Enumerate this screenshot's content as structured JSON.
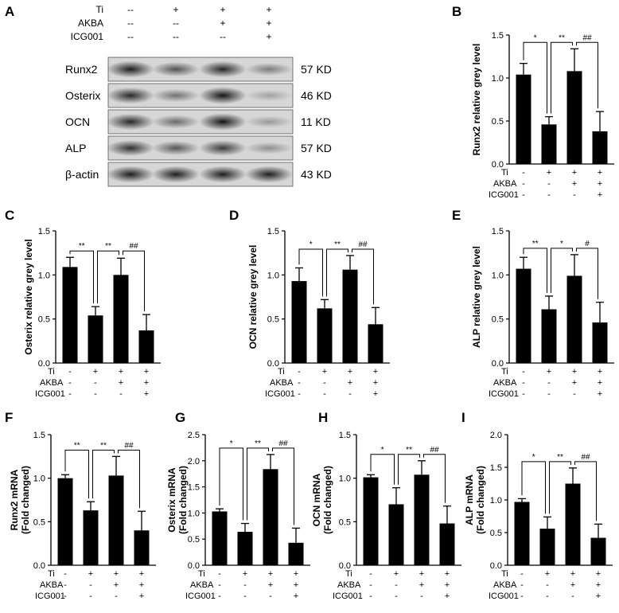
{
  "blot": {
    "letter": "A",
    "treatment_rows": [
      {
        "label": "Ti",
        "signs": [
          "--",
          "+",
          "+",
          "+"
        ]
      },
      {
        "label": "AKBA",
        "signs": [
          "--",
          "--",
          "+",
          "+"
        ]
      },
      {
        "label": "ICG001",
        "signs": [
          "--",
          "--",
          "--",
          "+"
        ]
      }
    ],
    "proteins": [
      {
        "name": "Runx2",
        "size": "57 KD",
        "intensities": [
          0.9,
          0.62,
          0.85,
          0.4
        ]
      },
      {
        "name": "Osterix",
        "size": "46 KD",
        "intensities": [
          0.85,
          0.45,
          0.95,
          0.2
        ]
      },
      {
        "name": "OCN",
        "size": "11 KD",
        "intensities": [
          0.85,
          0.5,
          0.95,
          0.25
        ]
      },
      {
        "name": "ALP",
        "size": "57 KD",
        "intensities": [
          0.8,
          0.6,
          0.75,
          0.3
        ]
      },
      {
        "name": "β-actin",
        "size": "43 KD",
        "intensities": [
          0.9,
          0.9,
          0.9,
          0.9
        ]
      }
    ]
  },
  "treatment_labels": [
    "Ti",
    "AKBA",
    "ICG001"
  ],
  "treatment_signs": [
    [
      "-",
      "+",
      "+",
      "+"
    ],
    [
      "-",
      "-",
      "+",
      "+"
    ],
    [
      "-",
      "-",
      "-",
      "+"
    ]
  ],
  "chart_data": [
    {
      "type": "bar",
      "letter": "B",
      "ylabel": "Runx2 relative grey level",
      "values": [
        1.04,
        0.46,
        1.08,
        0.38
      ],
      "errors": [
        0.13,
        0.09,
        0.26,
        0.23
      ],
      "ylim": [
        0,
        1.5
      ],
      "yticks": [
        "0.0",
        "0.5",
        "1.0",
        "1.5"
      ],
      "sig": [
        "*",
        "**",
        "##"
      ]
    },
    {
      "type": "bar",
      "letter": "C",
      "ylabel": "Osterix relative grey level",
      "values": [
        1.09,
        0.54,
        1.0,
        0.37
      ],
      "errors": [
        0.11,
        0.1,
        0.19,
        0.18
      ],
      "ylim": [
        0,
        1.5
      ],
      "yticks": [
        "0.0",
        "0.5",
        "1.0",
        "1.5"
      ],
      "sig": [
        "**",
        "**",
        "##"
      ]
    },
    {
      "type": "bar",
      "letter": "D",
      "ylabel": "OCN relative grey level",
      "values": [
        0.93,
        0.62,
        1.06,
        0.44
      ],
      "errors": [
        0.15,
        0.1,
        0.16,
        0.19
      ],
      "ylim": [
        0,
        1.5
      ],
      "yticks": [
        "0.0",
        "0.5",
        "1.0",
        "1.5"
      ],
      "sig": [
        "*",
        "**",
        "##"
      ]
    },
    {
      "type": "bar",
      "letter": "E",
      "ylabel": "ALP relative grey level",
      "values": [
        1.07,
        0.61,
        0.99,
        0.46
      ],
      "errors": [
        0.13,
        0.15,
        0.24,
        0.23
      ],
      "ylim": [
        0,
        1.5
      ],
      "yticks": [
        "0.0",
        "0.5",
        "1.0",
        "1.5"
      ],
      "sig": [
        "**",
        "*",
        "#"
      ]
    },
    {
      "type": "bar",
      "letter": "F",
      "ylabel": "Runx2 mRNA",
      "ylabel2": "(Fold changed)",
      "values": [
        1.0,
        0.63,
        1.03,
        0.4
      ],
      "errors": [
        0.04,
        0.1,
        0.22,
        0.22
      ],
      "ylim": [
        0,
        1.5
      ],
      "yticks": [
        "0.0",
        "0.5",
        "1.0",
        "1.5"
      ],
      "sig": [
        "**",
        "**",
        "##"
      ]
    },
    {
      "type": "bar",
      "letter": "G",
      "ylabel": "Osterix mRNA",
      "ylabel2": "(Fold changed)",
      "values": [
        1.03,
        0.64,
        1.84,
        0.43
      ],
      "errors": [
        0.05,
        0.16,
        0.28,
        0.28
      ],
      "ylim": [
        0,
        2.5
      ],
      "yticks": [
        "0.0",
        "0.5",
        "1.0",
        "1.5",
        "2.0",
        "2.5"
      ],
      "sig": [
        "*",
        "**",
        "##"
      ]
    },
    {
      "type": "bar",
      "letter": "H",
      "ylabel": "OCN mRNA",
      "ylabel2": "(Fold changed)",
      "values": [
        1.01,
        0.7,
        1.04,
        0.48
      ],
      "errors": [
        0.03,
        0.19,
        0.16,
        0.2
      ],
      "ylim": [
        0,
        1.5
      ],
      "yticks": [
        "0.0",
        "0.5",
        "1.0",
        "1.5"
      ],
      "sig": [
        "*",
        "**",
        "##"
      ]
    },
    {
      "type": "bar",
      "letter": "I",
      "ylabel": "ALP mRNA",
      "ylabel2": "(Fold changed)",
      "values": [
        0.97,
        0.56,
        1.25,
        0.42
      ],
      "errors": [
        0.05,
        0.18,
        0.24,
        0.21
      ],
      "ylim": [
        0,
        2.0
      ],
      "yticks": [
        "0.0",
        "0.5",
        "1.0",
        "1.5",
        "2.0"
      ],
      "sig": [
        "*",
        "**",
        "##"
      ]
    }
  ]
}
